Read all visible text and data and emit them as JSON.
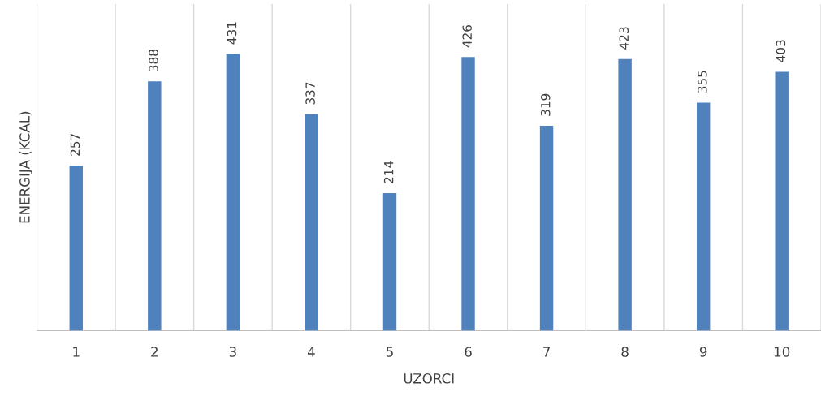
{
  "chart_data": {
    "type": "bar",
    "xlabel": "UZORCI",
    "ylabel": "ENERGIJA (KCAL)",
    "categories": [
      "1",
      "2",
      "3",
      "4",
      "5",
      "6",
      "7",
      "8",
      "9",
      "10"
    ],
    "values": [
      257,
      388,
      431,
      337,
      214,
      426,
      319,
      423,
      355,
      403
    ],
    "color": "#4f81bd",
    "data_labels": true,
    "grid": "x",
    "tick_labels": "x"
  }
}
